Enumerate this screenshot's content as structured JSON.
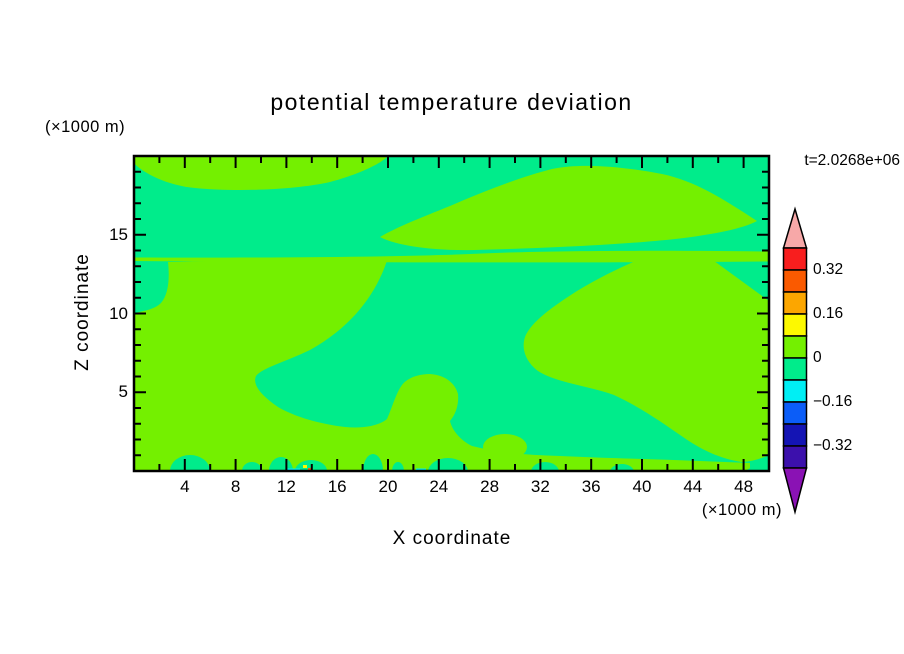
{
  "title": "potential temperature deviation",
  "time_label": "t=2.0268e+06",
  "axes": {
    "x": {
      "label": "X coordinate",
      "units": "(×1000 m)",
      "range": [
        0,
        50
      ],
      "minor_step": 2,
      "major_step": 4,
      "tick_labels": [
        "4",
        "8",
        "12",
        "16",
        "20",
        "24",
        "28",
        "32",
        "36",
        "40",
        "44",
        "48"
      ]
    },
    "z": {
      "label": "Z coordinate",
      "units": "(×1000 m)",
      "range": [
        0,
        20
      ],
      "minor_step": 1,
      "major_step": 5,
      "tick_labels": [
        "5",
        "10",
        "15"
      ]
    }
  },
  "colorbar": {
    "labels": [
      "0.32",
      "0.16",
      "0",
      "−0.16",
      "−0.32"
    ],
    "over_color": "#f7a8a8",
    "under_color": "#8a12b4",
    "segments": [
      {
        "range": [
          0.32,
          0.4
        ],
        "color": "#f81e1e"
      },
      {
        "range": [
          0.24,
          0.32
        ],
        "color": "#fa5a00"
      },
      {
        "range": [
          0.16,
          0.24
        ],
        "color": "#fca600"
      },
      {
        "range": [
          0.08,
          0.16
        ],
        "color": "#fdf900"
      },
      {
        "range": [
          0.0,
          0.08
        ],
        "color": "#74f000"
      },
      {
        "range": [
          -0.08,
          0.0
        ],
        "color": "#00ec8b"
      },
      {
        "range": [
          -0.16,
          -0.08
        ],
        "color": "#00eff4"
      },
      {
        "range": [
          -0.24,
          -0.16
        ],
        "color": "#0b5df8"
      },
      {
        "range": [
          -0.32,
          -0.24
        ],
        "color": "#1414b4"
      },
      {
        "range": [
          -0.4,
          -0.32
        ],
        "color": "#3c10ac"
      }
    ]
  },
  "colors": {
    "positive_band": "#74f000",
    "negative_band": "#00ec8b",
    "cyan_band": "#00eff4",
    "axis": "#000000",
    "background": "#ffffff"
  },
  "chart_data": {
    "type": "filled_contour",
    "title": "potential temperature deviation",
    "xlabel": "X coordinate (×1000 m)",
    "ylabel": "Z coordinate (×1000 m)",
    "time_annotation": "t=2.0268e+06",
    "xlim": [
      0,
      50
    ],
    "ylim": [
      0,
      20
    ],
    "grid": false,
    "contour_interval": 0.08,
    "levels": [
      -0.4,
      -0.32,
      -0.24,
      -0.16,
      -0.08,
      0,
      0.08,
      0.16,
      0.24,
      0.32,
      0.4
    ],
    "labeled_colorbar_levels": [
      0.32,
      0.16,
      0,
      -0.16,
      -0.32
    ],
    "legend_position": "right-colorbar-with-over-under-arrows",
    "visible_bands": [
      {
        "band": "0 to 0.08 (light yellow-green)",
        "regions": [
          {
            "desc": "cap touching the top boundary, upper left",
            "x": [
              0,
              20
            ],
            "z": [
              17.8,
              20
            ]
          },
          {
            "desc": "broad dome in the upper right with pointed right tip",
            "x": [
              19.4,
              49
            ],
            "z": [
              14.0,
              19.4
            ]
          },
          {
            "desc": "thin horizontal layer spanning the full width",
            "x": [
              0,
              50
            ],
            "z": [
              13.2,
              13.7
            ]
          },
          {
            "desc": "large lower-left region, attached to the thin layer between x=2.7 and x=20, reaching the left boundary below z=10",
            "x": [
              0,
              21
            ],
            "z": [
              0,
              13.2
            ]
          },
          {
            "desc": "column under the thin layer on the right side, reaching the right boundary between z=1 and z=10.8",
            "x": [
              30.5,
              50
            ],
            "z": [
              0.7,
              13.2
            ]
          },
          {
            "desc": "small rounded blob above the bottom strip",
            "x": [
              21,
              25.5
            ],
            "z": [
              3.2,
              6.2
            ]
          },
          {
            "desc": "thin strip along the bottom boundary",
            "x": [
              0,
              48.5
            ],
            "z": [
              0,
              1.2
            ]
          }
        ]
      },
      {
        "band": "-0.08 to 0 (spring green)",
        "regions": [
          {
            "desc": "background: most of the domain, including the upper half, a central column, a breaking-wave-shaped intrusion near x=10-20 z=3-7, and small mounds on the bottom boundary",
            "x": [
              0,
              50
            ],
            "z": [
              0,
              20
            ]
          }
        ]
      },
      {
        "band": "-0.16 to -0.08 (cyan)",
        "regions": [
          {
            "desc": "tiny specks on the bottom boundary",
            "x": [
              12,
              23
            ],
            "z": [
              0,
              0.2
            ]
          }
        ]
      },
      {
        "band": "isolated warm specks (yellow / orange)",
        "regions": [
          {
            "desc": "tiny near-surface specks",
            "x": [
              13.3,
              13.8
            ],
            "z": [
              0,
              0.5
            ]
          }
        ]
      }
    ]
  }
}
